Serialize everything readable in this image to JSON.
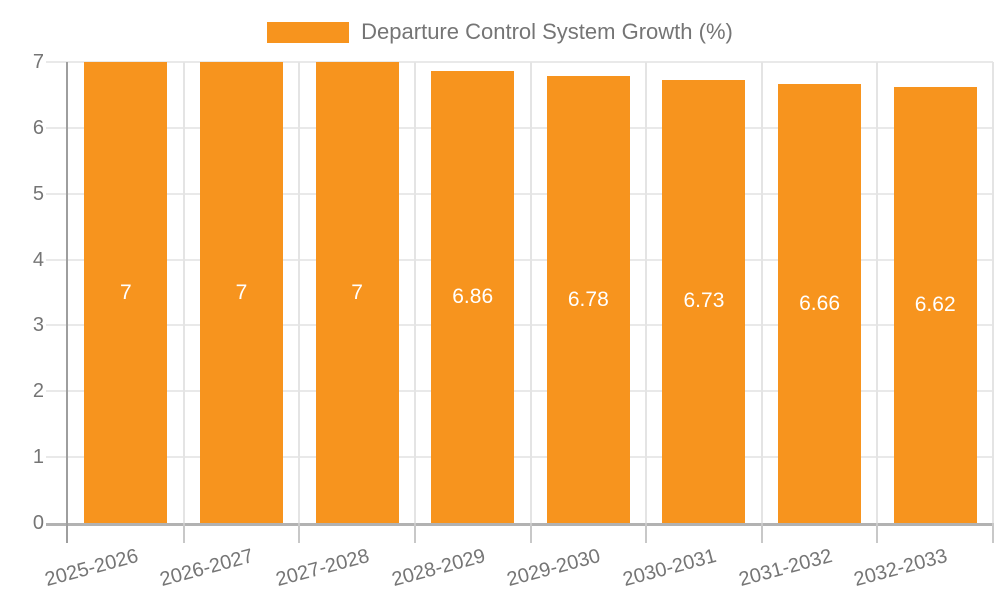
{
  "legend": {
    "label": "Departure Control System Growth (%)",
    "swatch_color": "#f7941e"
  },
  "chart_data": {
    "type": "bar",
    "title": "Departure Control System Growth (%)",
    "categories": [
      "2025-2026",
      "2026-2027",
      "2027-2028",
      "2028-2029",
      "2029-2030",
      "2030-2031",
      "2031-2032",
      "2032-2033"
    ],
    "values": [
      7,
      7,
      7,
      6.86,
      6.78,
      6.73,
      6.66,
      6.62
    ],
    "bar_labels": [
      "7",
      "7",
      "7",
      "6.86",
      "6.78",
      "6.73",
      "6.66",
      "6.62"
    ],
    "xlabel": "",
    "ylabel": "",
    "ylim": [
      0,
      7
    ],
    "yticks": [
      0,
      1,
      2,
      3,
      4,
      5,
      6,
      7
    ],
    "grid": true,
    "legend_position": "top",
    "bar_color": "#f7941e",
    "value_label_color": "#ffffff",
    "axis_text_color": "#757575"
  }
}
